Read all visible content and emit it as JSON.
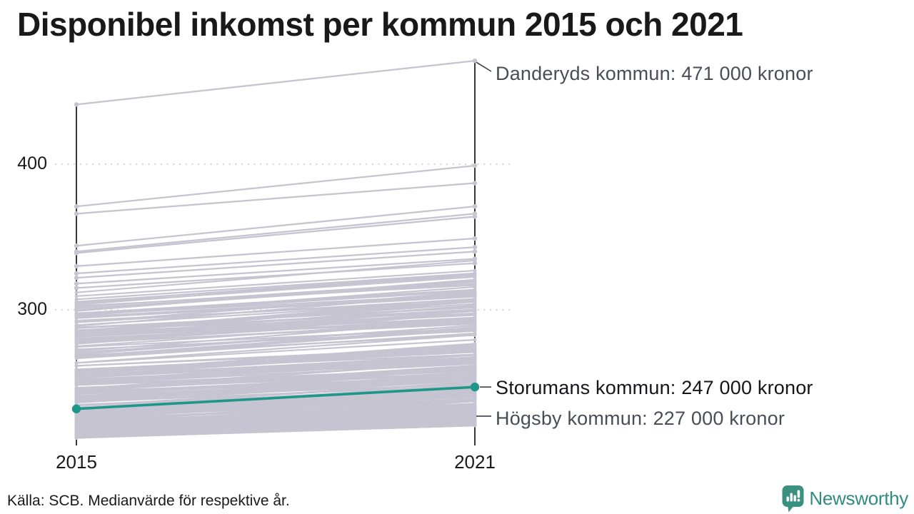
{
  "header": {
    "title": "Disponibel inkomst per kommun 2015 och 2021"
  },
  "footer": {
    "source": "Källa: SCB. Medianvärde för respektive år.",
    "brand_name": "Newsworthy"
  },
  "chart_data": {
    "type": "line",
    "subtype": "slopegraph",
    "title": "Disponibel inkomst per kommun 2015 och 2021",
    "unit": "000 kronor (tusental kronor, medianvärde)",
    "x_categories": [
      "2015",
      "2021"
    ],
    "y_tick_labels": [
      "400",
      "300"
    ],
    "y_ticks": [
      400,
      300
    ],
    "grid": "dotted-horizontal",
    "y_axis_span_left": [
      207,
      441
    ],
    "y_axis_span_right": [
      207,
      471
    ],
    "legend_position": "none",
    "annotations": [
      {
        "series": "Danderyds kommun",
        "label": "Danderyds kommun: 471 000 kronor",
        "year": 2021,
        "value": 471
      },
      {
        "series": "Storumans kommun",
        "label": "Storumans kommun: 247 000 kronor",
        "year": 2021,
        "value": 247,
        "highlighted": true
      },
      {
        "series": "Högsby kommun",
        "label": "Högsby kommun: 227 000 kronor",
        "year": 2021,
        "value": 227
      }
    ],
    "highlight_series": {
      "name": "Storumans kommun",
      "values": [
        232,
        247
      ],
      "color": "#1f968a"
    },
    "named_series": [
      {
        "name": "Danderyds kommun",
        "values": [
          441,
          471
        ]
      },
      {
        "name": "Storumans kommun",
        "values": [
          232,
          247
        ]
      },
      {
        "name": "Högsby kommun",
        "values": [
          212,
          227
        ]
      }
    ],
    "upper_outlier_lines": [
      [
        441,
        471
      ],
      [
        371,
        399
      ],
      [
        366,
        387
      ],
      [
        344,
        371
      ],
      [
        340,
        366
      ],
      [
        339,
        364
      ],
      [
        330,
        349
      ],
      [
        325,
        343
      ],
      [
        322,
        340
      ],
      [
        318,
        335
      ],
      [
        315,
        332
      ]
    ],
    "background_distribution": {
      "note": "approx. 290 Swedish municipalities, individual values not labeled in image",
      "count": 272,
      "seed": 1337,
      "min_2015": 212,
      "range_2015": 100,
      "skew": 2.2,
      "uplift_base": 8,
      "uplift_random": 10,
      "uplift_slope": 0.06
    },
    "colors": {
      "background_line": "#c6c4d1",
      "highlight_line": "#1f968a",
      "axis": "#151515",
      "grid": "#d8d8dc",
      "callout": "#3c3c44"
    }
  }
}
